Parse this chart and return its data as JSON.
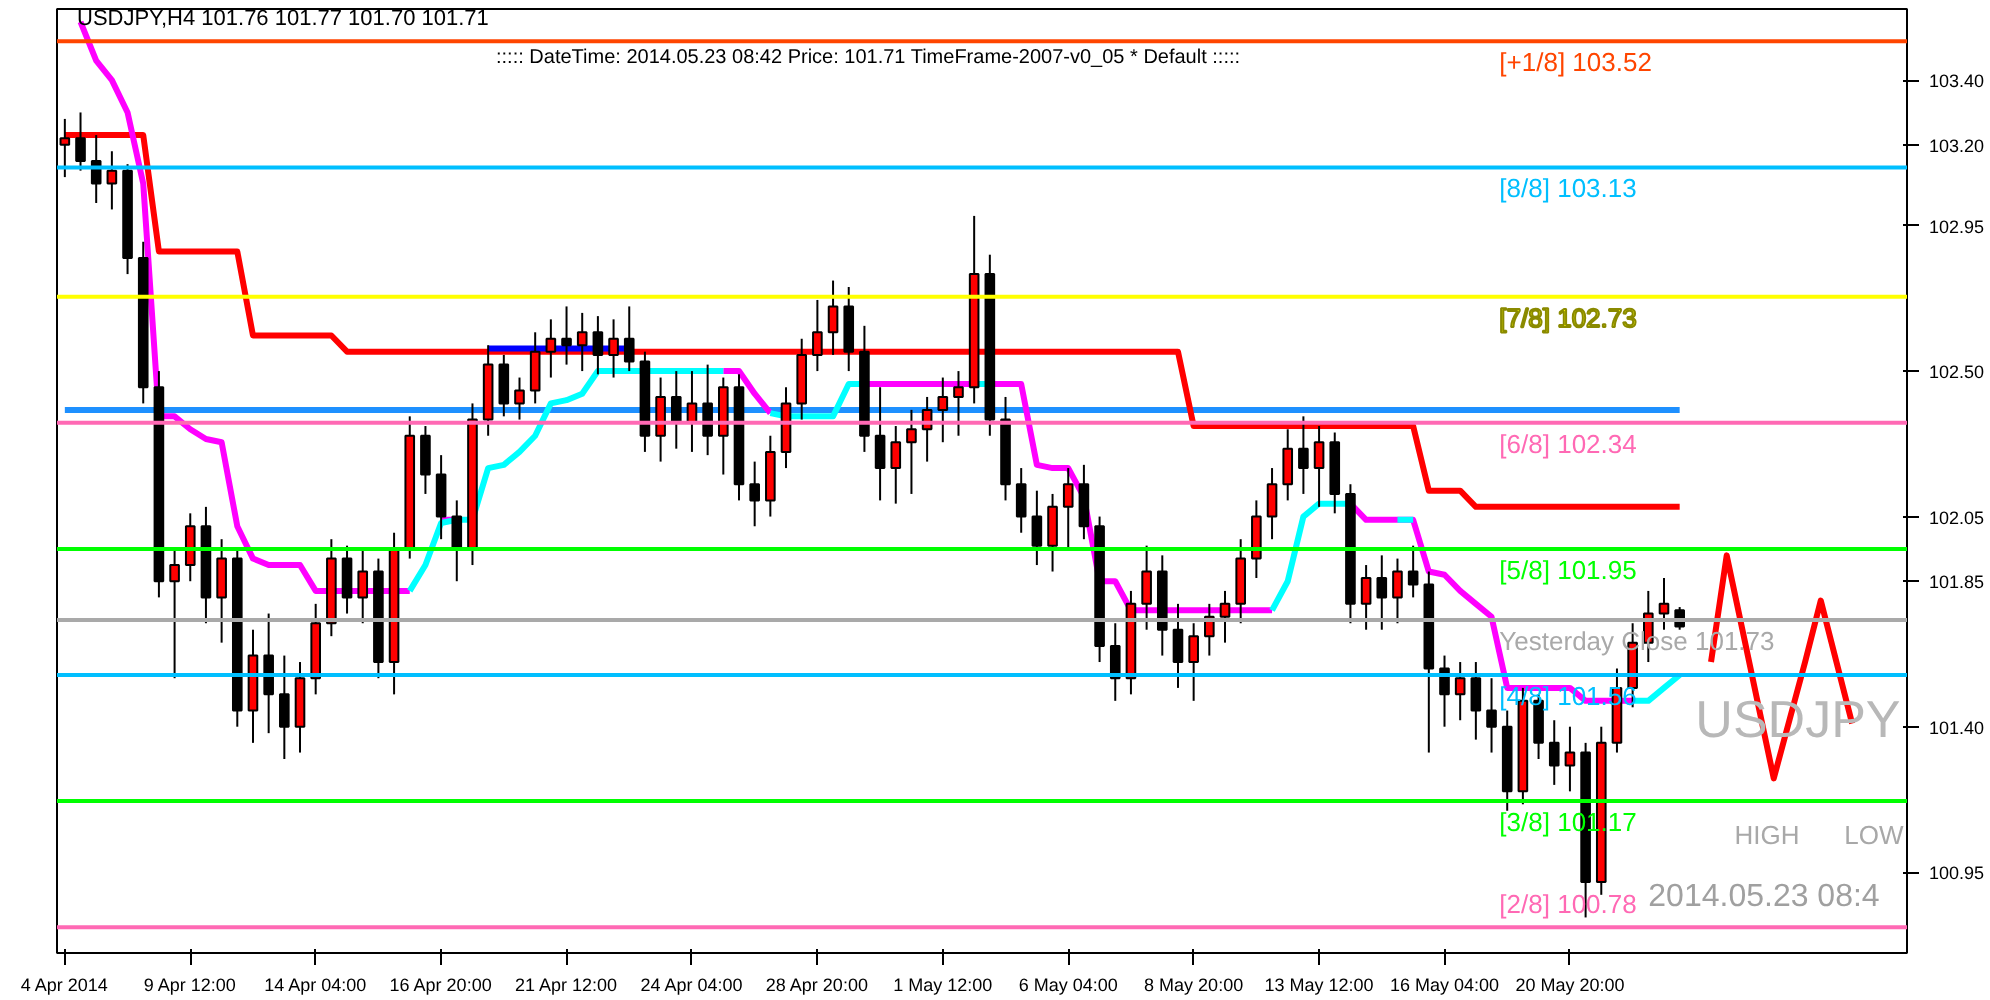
{
  "chart_data": {
    "type": "candlestick",
    "title": "USDJPY,H4  101.76 101.77 101.70 101.71",
    "subtitle": "::::: DateTime: 2014.05.23 08:42   Price: 101.71   TimeFrame-2007-v0_05   *   Default  :::::",
    "categories": [
      "4 Apr 2014",
      null,
      null,
      null,
      null,
      null,
      null,
      null,
      "9 Apr 12:00",
      null,
      null,
      null,
      null,
      null,
      null,
      null,
      "14 Apr 04:00",
      null,
      null,
      null,
      null,
      null,
      null,
      null,
      "16 Apr 20:00",
      null,
      null,
      null,
      null,
      null,
      null,
      null,
      "21 Apr 12:00",
      null,
      null,
      null,
      null,
      null,
      null,
      null,
      "24 Apr 04:00",
      null,
      null,
      null,
      null,
      null,
      null,
      null,
      "28 Apr 20:00",
      null,
      null,
      null,
      null,
      null,
      null,
      null,
      "1 May 12:00",
      null,
      null,
      null,
      null,
      null,
      null,
      null,
      "6 May 04:00",
      null,
      null,
      null,
      null,
      null,
      null,
      null,
      "8 May 20:00",
      null,
      null,
      null,
      null,
      null,
      null,
      null,
      "13 May 12:00",
      null,
      null,
      null,
      null,
      null,
      null,
      null,
      "16 May 04:00",
      null,
      null,
      null,
      null,
      null,
      null,
      null,
      "20 May 20:00",
      null,
      null,
      null,
      null,
      null,
      null,
      null,
      null,
      null,
      null,
      null,
      null,
      null,
      null,
      null,
      null,
      null,
      null,
      null,
      null,
      null
    ],
    "ohlc": [
      [
        103.2,
        103.28,
        103.1,
        103.22
      ],
      [
        103.22,
        103.3,
        103.12,
        103.15
      ],
      [
        103.15,
        103.23,
        103.02,
        103.08
      ],
      [
        103.08,
        103.18,
        103.0,
        103.12
      ],
      [
        103.12,
        103.14,
        102.8,
        102.85
      ],
      [
        102.85,
        102.9,
        102.4,
        102.45
      ],
      [
        102.45,
        102.5,
        101.8,
        101.85
      ],
      [
        101.85,
        101.95,
        101.55,
        101.9
      ],
      [
        101.9,
        102.06,
        101.85,
        102.02
      ],
      [
        102.02,
        102.08,
        101.72,
        101.8
      ],
      [
        101.8,
        101.98,
        101.66,
        101.92
      ],
      [
        101.92,
        101.95,
        101.4,
        101.45
      ],
      [
        101.45,
        101.7,
        101.35,
        101.62
      ],
      [
        101.62,
        101.75,
        101.38,
        101.5
      ],
      [
        101.5,
        101.62,
        101.3,
        101.4
      ],
      [
        101.4,
        101.6,
        101.32,
        101.55
      ],
      [
        101.55,
        101.78,
        101.5,
        101.72
      ],
      [
        101.72,
        101.98,
        101.68,
        101.92
      ],
      [
        101.92,
        101.96,
        101.75,
        101.8
      ],
      [
        101.8,
        101.95,
        101.72,
        101.88
      ],
      [
        101.88,
        101.92,
        101.55,
        101.6
      ],
      [
        101.6,
        102.0,
        101.5,
        101.95
      ],
      [
        101.95,
        102.36,
        101.92,
        102.3
      ],
      [
        102.3,
        102.33,
        102.12,
        102.18
      ],
      [
        102.18,
        102.24,
        101.98,
        102.05
      ],
      [
        102.05,
        102.1,
        101.85,
        101.95
      ],
      [
        101.95,
        102.4,
        101.9,
        102.35
      ],
      [
        102.35,
        102.58,
        102.3,
        102.52
      ],
      [
        102.52,
        102.55,
        102.36,
        102.4
      ],
      [
        102.4,
        102.48,
        102.35,
        102.44
      ],
      [
        102.44,
        102.62,
        102.4,
        102.56
      ],
      [
        102.56,
        102.66,
        102.48,
        102.6
      ],
      [
        102.6,
        102.7,
        102.52,
        102.58
      ],
      [
        102.58,
        102.68,
        102.5,
        102.62
      ],
      [
        102.62,
        102.67,
        102.49,
        102.55
      ],
      [
        102.55,
        102.66,
        102.48,
        102.6
      ],
      [
        102.6,
        102.7,
        102.5,
        102.53
      ],
      [
        102.53,
        102.56,
        102.25,
        102.3
      ],
      [
        102.3,
        102.48,
        102.22,
        102.42
      ],
      [
        102.42,
        102.5,
        102.26,
        102.34
      ],
      [
        102.34,
        102.5,
        102.25,
        102.4
      ],
      [
        102.4,
        102.52,
        102.24,
        102.3
      ],
      [
        102.3,
        102.48,
        102.18,
        102.45
      ],
      [
        102.45,
        102.49,
        102.1,
        102.15
      ],
      [
        102.15,
        102.22,
        102.02,
        102.1
      ],
      [
        102.1,
        102.3,
        102.05,
        102.25
      ],
      [
        102.25,
        102.45,
        102.2,
        102.4
      ],
      [
        102.4,
        102.6,
        102.35,
        102.55
      ],
      [
        102.55,
        102.72,
        102.5,
        102.62
      ],
      [
        102.62,
        102.78,
        102.55,
        102.7
      ],
      [
        102.7,
        102.76,
        102.5,
        102.56
      ],
      [
        102.56,
        102.64,
        102.25,
        102.3
      ],
      [
        102.3,
        102.45,
        102.1,
        102.2
      ],
      [
        102.2,
        102.33,
        102.09,
        102.28
      ],
      [
        102.28,
        102.38,
        102.12,
        102.32
      ],
      [
        102.32,
        102.42,
        102.22,
        102.38
      ],
      [
        102.38,
        102.48,
        102.28,
        102.42
      ],
      [
        102.42,
        102.5,
        102.3,
        102.45
      ],
      [
        102.45,
        102.98,
        102.4,
        102.8
      ],
      [
        102.8,
        102.86,
        102.3,
        102.35
      ],
      [
        102.35,
        102.42,
        102.1,
        102.15
      ],
      [
        102.15,
        102.2,
        102.0,
        102.05
      ],
      [
        102.05,
        102.13,
        101.9,
        101.96
      ],
      [
        101.96,
        102.12,
        101.88,
        102.08
      ],
      [
        102.08,
        102.2,
        101.95,
        102.15
      ],
      [
        102.15,
        102.21,
        101.98,
        102.02
      ],
      [
        102.02,
        102.05,
        101.6,
        101.65
      ],
      [
        101.65,
        101.72,
        101.48,
        101.55
      ],
      [
        101.55,
        101.82,
        101.5,
        101.78
      ],
      [
        101.78,
        101.96,
        101.7,
        101.88
      ],
      [
        101.88,
        101.93,
        101.62,
        101.7
      ],
      [
        101.7,
        101.78,
        101.52,
        101.6
      ],
      [
        101.6,
        101.72,
        101.48,
        101.68
      ],
      [
        101.68,
        101.78,
        101.62,
        101.74
      ],
      [
        101.74,
        101.82,
        101.66,
        101.78
      ],
      [
        101.78,
        101.98,
        101.72,
        101.92
      ],
      [
        101.92,
        102.1,
        101.86,
        102.05
      ],
      [
        102.05,
        102.2,
        101.98,
        102.15
      ],
      [
        102.15,
        102.32,
        102.1,
        102.26
      ],
      [
        102.26,
        102.36,
        102.12,
        102.2
      ],
      [
        102.2,
        102.33,
        102.08,
        102.28
      ],
      [
        102.28,
        102.31,
        102.06,
        102.12
      ],
      [
        102.12,
        102.15,
        101.72,
        101.78
      ],
      [
        101.78,
        101.9,
        101.7,
        101.86
      ],
      [
        101.86,
        101.93,
        101.7,
        101.8
      ],
      [
        101.8,
        101.92,
        101.72,
        101.88
      ],
      [
        101.88,
        101.96,
        101.8,
        101.84
      ],
      [
        101.84,
        101.88,
        101.32,
        101.58
      ],
      [
        101.58,
        101.62,
        101.4,
        101.5
      ],
      [
        101.5,
        101.6,
        101.42,
        101.55
      ],
      [
        101.55,
        101.6,
        101.36,
        101.45
      ],
      [
        101.45,
        101.55,
        101.32,
        101.4
      ],
      [
        101.4,
        101.45,
        101.14,
        101.2
      ],
      [
        101.2,
        101.52,
        101.16,
        101.48
      ],
      [
        101.48,
        101.5,
        101.3,
        101.35
      ],
      [
        101.35,
        101.42,
        101.22,
        101.28
      ],
      [
        101.28,
        101.4,
        101.2,
        101.32
      ],
      [
        101.32,
        101.35,
        100.81,
        100.92
      ],
      [
        100.92,
        101.4,
        100.88,
        101.35
      ],
      [
        101.35,
        101.58,
        101.32,
        101.52
      ],
      [
        101.52,
        101.72,
        101.46,
        101.66
      ],
      [
        101.66,
        101.82,
        101.6,
        101.75
      ],
      [
        101.75,
        101.86,
        101.7,
        101.78
      ],
      [
        101.76,
        101.77,
        101.7,
        101.71
      ],
      null,
      null,
      null,
      null,
      null,
      null,
      null,
      null,
      null,
      null,
      null,
      null,
      null,
      null
    ],
    "colors": [
      "#ff0000",
      "#000000",
      "#000000",
      "#ff0000",
      "#000000",
      "#000000",
      "#000000",
      "#ff0000",
      "#ff0000",
      "#000000",
      "#ff0000",
      "#000000",
      "#ff0000",
      "#000000",
      "#000000",
      "#ff0000",
      "#ff0000",
      "#ff0000",
      "#000000",
      "#ff0000",
      "#000000",
      "#ff0000",
      "#ff0000",
      "#000000",
      "#000000",
      "#000000",
      "#ff0000",
      "#ff0000",
      "#000000",
      "#ff0000",
      "#ff0000",
      "#ff0000",
      "#000000",
      "#ff0000",
      "#000000",
      "#ff0000",
      "#000000",
      "#000000",
      "#ff0000",
      "#000000",
      "#ff0000",
      "#000000",
      "#ff0000",
      "#000000",
      "#000000",
      "#ff0000",
      "#ff0000",
      "#ff0000",
      "#ff0000",
      "#ff0000",
      "#000000",
      "#000000",
      "#000000",
      "#ff0000",
      "#ff0000",
      "#ff0000",
      "#ff0000",
      "#ff0000",
      "#ff0000",
      "#000000",
      "#000000",
      "#000000",
      "#000000",
      "#ff0000",
      "#ff0000",
      "#000000",
      "#000000",
      "#000000",
      "#ff0000",
      "#ff0000",
      "#000000",
      "#000000",
      "#ff0000",
      "#ff0000",
      "#ff0000",
      "#ff0000",
      "#ff0000",
      "#ff0000",
      "#ff0000",
      "#000000",
      "#ff0000",
      "#000000",
      "#000000",
      "#ff0000",
      "#000000",
      "#ff0000",
      "#000000",
      "#000000",
      "#000000",
      "#ff0000",
      "#000000",
      "#000000",
      "#000000",
      "#ff0000",
      "#000000",
      "#000000",
      "#ff0000",
      "#000000",
      "#ff0000",
      "#ff0000",
      "#ff0000",
      "#ff0000",
      "#ff0000",
      "#000000",
      null,
      null,
      null,
      null,
      null,
      null,
      null,
      null,
      null,
      null,
      null,
      null,
      null,
      null
    ],
    "series": [
      {
        "type": "line",
        "color": "#1e90ff",
        "values": [
          102.38,
          102.38,
          102.38,
          102.38,
          102.38,
          102.38,
          102.38,
          102.38,
          102.38,
          102.38,
          102.38,
          102.38,
          102.38,
          102.38,
          102.38,
          102.38,
          102.38,
          102.38,
          102.38,
          102.38,
          102.38,
          102.38,
          102.38,
          102.38,
          102.38,
          102.38,
          102.38,
          102.38,
          102.38,
          102.38,
          102.38,
          102.38,
          102.38,
          102.38,
          102.38,
          102.38,
          102.38,
          102.38,
          102.38,
          102.38,
          102.38,
          102.38,
          102.38,
          102.38,
          102.38,
          102.38,
          102.38,
          102.38,
          102.38,
          102.38,
          102.38,
          102.38,
          102.38,
          102.38,
          102.38,
          102.38,
          102.38,
          102.38,
          102.38,
          102.38,
          102.38,
          102.38,
          102.38,
          102.38,
          102.38,
          102.38,
          102.38,
          102.38,
          102.38,
          102.38,
          102.38,
          102.38,
          102.38,
          102.38,
          102.38,
          102.38,
          102.38,
          102.38,
          102.38,
          102.38,
          102.38,
          102.38,
          102.38,
          102.38,
          102.38,
          102.38,
          102.38,
          102.38,
          102.38,
          102.38,
          102.38,
          102.38,
          102.38,
          102.38,
          102.38,
          102.38,
          102.38,
          102.38,
          102.38,
          102.38,
          102.38,
          102.38,
          102.38,
          102.38,
          null,
          null,
          null,
          null,
          null,
          null,
          null,
          null,
          null,
          null,
          null,
          null,
          null,
          null
        ]
      },
      {
        "type": "line",
        "color": "#ff0000",
        "values": [
          103.23,
          103.23,
          103.23,
          103.23,
          103.23,
          103.23,
          102.87,
          102.87,
          102.87,
          102.87,
          102.87,
          102.87,
          102.61,
          102.61,
          102.61,
          102.61,
          102.61,
          102.61,
          102.56,
          102.56,
          102.56,
          102.56,
          102.56,
          102.56,
          102.56,
          102.56,
          102.56,
          102.56,
          102.56,
          102.56,
          102.56,
          102.56,
          102.56,
          102.56,
          102.56,
          102.56,
          102.56,
          102.56,
          102.56,
          102.56,
          102.56,
          102.56,
          102.56,
          102.56,
          102.56,
          102.56,
          102.56,
          102.56,
          102.56,
          102.56,
          102.56,
          102.56,
          102.56,
          102.56,
          102.56,
          102.56,
          102.56,
          102.56,
          102.56,
          102.56,
          102.56,
          102.56,
          102.56,
          102.56,
          102.56,
          102.56,
          102.56,
          102.56,
          102.56,
          102.56,
          102.56,
          102.56,
          102.33,
          102.33,
          102.33,
          102.33,
          102.33,
          102.33,
          102.33,
          102.33,
          102.33,
          102.33,
          102.33,
          102.33,
          102.33,
          102.33,
          102.33,
          102.13,
          102.13,
          102.13,
          102.08,
          102.08,
          102.08,
          102.08,
          102.08,
          102.08,
          102.08,
          102.08,
          102.08,
          102.08,
          102.08,
          102.08,
          102.08,
          102.08,
          null,
          null,
          null,
          null,
          null,
          null,
          null,
          null,
          null,
          null,
          null,
          null,
          null,
          null
        ]
      },
      {
        "type": "line",
        "color": "#0000ff",
        "values": [
          null,
          null,
          null,
          null,
          null,
          null,
          null,
          null,
          null,
          null,
          null,
          null,
          null,
          null,
          null,
          null,
          null,
          null,
          null,
          null,
          null,
          null,
          null,
          null,
          null,
          null,
          null,
          102.57,
          102.57,
          102.57,
          102.57,
          102.57,
          102.57,
          102.57,
          102.57,
          102.57,
          102.57,
          null,
          null,
          null,
          null,
          null,
          null,
          null,
          null,
          null,
          null,
          null,
          null,
          null,
          null,
          null,
          null,
          null,
          null,
          null,
          null,
          null,
          null,
          null,
          null,
          null,
          null,
          null,
          null,
          null,
          null,
          null,
          null,
          null,
          null,
          null,
          null,
          null,
          null,
          null,
          null,
          null,
          null,
          null,
          null,
          null,
          null,
          null,
          null,
          null,
          null,
          null,
          null,
          null,
          null,
          null,
          null,
          null,
          null,
          null,
          null,
          null,
          null,
          null,
          null,
          null,
          null,
          null,
          null,
          null,
          null,
          null,
          null,
          null,
          null,
          null,
          null,
          null,
          null,
          null,
          null,
          null
        ]
      },
      {
        "type": "line",
        "color": "#ff00ff",
        "values": [
          null,
          103.58,
          103.46,
          103.4,
          103.3,
          103.08,
          102.36,
          102.36,
          102.32,
          102.29,
          102.28,
          102.02,
          101.92,
          101.9,
          101.9,
          101.9,
          101.82,
          101.82,
          101.82,
          101.82,
          101.82,
          101.82,
          101.82,
          null,
          102.04,
          102.04,
          null,
          null,
          null,
          null,
          null,
          null,
          null,
          null,
          null,
          null,
          null,
          null,
          null,
          null,
          null,
          null,
          102.5,
          102.5,
          102.43,
          102.37,
          null,
          null,
          null,
          null,
          null,
          102.46,
          102.46,
          102.46,
          102.46,
          102.46,
          102.46,
          102.46,
          102.46,
          102.46,
          102.46,
          102.46,
          102.21,
          102.2,
          102.2,
          102.11,
          101.85,
          101.85,
          101.76,
          101.76,
          101.76,
          101.76,
          101.76,
          101.76,
          101.76,
          101.76,
          101.76,
          101.76,
          null,
          null,
          null,
          null,
          102.09,
          102.04,
          102.04,
          102.04,
          102.04,
          101.88,
          101.87,
          101.82,
          101.78,
          101.74,
          101.52,
          101.52,
          101.52,
          101.52,
          101.52,
          101.48,
          101.48,
          101.48,
          101.48,
          null,
          null,
          null,
          null,
          null,
          null,
          null,
          null,
          null,
          null,
          null,
          null,
          null,
          null,
          null,
          null,
          null
        ]
      },
      {
        "type": "line",
        "color": "#00ffff",
        "values": [
          null,
          null,
          null,
          null,
          null,
          null,
          null,
          null,
          null,
          null,
          null,
          null,
          null,
          null,
          null,
          null,
          null,
          null,
          null,
          null,
          null,
          null,
          101.82,
          101.9,
          102.03,
          102.04,
          102.04,
          102.2,
          102.21,
          102.25,
          102.3,
          102.4,
          102.41,
          102.43,
          102.5,
          102.5,
          102.5,
          102.5,
          102.5,
          102.5,
          102.5,
          102.5,
          102.5,
          null,
          null,
          102.37,
          102.36,
          102.36,
          102.36,
          102.36,
          102.46,
          102.46,
          null,
          null,
          null,
          null,
          null,
          null,
          102.46,
          102.46,
          null,
          null,
          null,
          null,
          null,
          null,
          null,
          null,
          null,
          null,
          null,
          null,
          null,
          null,
          null,
          null,
          null,
          101.76,
          101.85,
          102.05,
          102.09,
          102.09,
          102.09,
          null,
          null,
          102.04,
          102.04,
          null,
          null,
          null,
          null,
          null,
          null,
          null,
          null,
          null,
          null,
          null,
          null,
          null,
          101.48,
          101.48,
          101.52,
          101.56,
          null,
          null,
          null,
          null,
          null,
          null,
          null,
          null,
          null,
          null,
          null,
          null,
          null,
          null
        ]
      },
      {
        "type": "line",
        "color": "#ff0000",
        "values": [
          null,
          null,
          null,
          null,
          null,
          null,
          null,
          null,
          null,
          null,
          null,
          null,
          null,
          null,
          null,
          null,
          null,
          null,
          null,
          null,
          null,
          null,
          null,
          null,
          null,
          null,
          null,
          null,
          null,
          null,
          null,
          null,
          null,
          null,
          null,
          null,
          null,
          null,
          null,
          null,
          null,
          null,
          null,
          null,
          null,
          null,
          null,
          null,
          null,
          null,
          null,
          null,
          null,
          null,
          null,
          null,
          null,
          null,
          null,
          null,
          null,
          null,
          null,
          null,
          null,
          null,
          null,
          null,
          null,
          null,
          null,
          null,
          null,
          null,
          null,
          null,
          null,
          null,
          null,
          null,
          null,
          null,
          null,
          null,
          null,
          null,
          null,
          null,
          null,
          null,
          null,
          null,
          null,
          null,
          null,
          null,
          null,
          null,
          null,
          null,
          null,
          null,
          null,
          null,
          null,
          101.6,
          101.93,
          101.7,
          101.47,
          101.24,
          101.42,
          101.6,
          101.79,
          101.6,
          101.41,
          null,
          null,
          null
        ]
      }
    ],
    "ref_lines": [
      {
        "axis": "y",
        "value": 103.52,
        "label": "[+1/8]     103.52",
        "color": "#ff4500"
      },
      {
        "axis": "y",
        "value": 103.13,
        "label": "[8/8]     103.13",
        "color": "#00bfff"
      },
      {
        "axis": "y",
        "value": 102.73,
        "label": "[7/8]     102.73",
        "color": "#ffff00"
      },
      {
        "axis": "y",
        "value": 102.34,
        "label": "[6/8]     102.34",
        "color": "#ff69b4"
      },
      {
        "axis": "y",
        "value": 101.95,
        "label": "[5/8]     101.95",
        "color": "#00ff00"
      },
      {
        "axis": "y",
        "value": 101.73,
        "label": "Yesterday Close  101.73",
        "color": "#a9a9a9"
      },
      {
        "axis": "y",
        "value": 101.56,
        "label": "[4/8]     101.56",
        "color": "#00bfff"
      },
      {
        "axis": "y",
        "value": 101.17,
        "label": "[3/8]     101.17",
        "color": "#00ff00"
      },
      {
        "axis": "y",
        "value": 100.78,
        "label": "[2/8]     100.78",
        "color": "#ff69b4"
      }
    ],
    "annotations": [
      "USDJPY",
      "HIGH",
      "LOW",
      "2014.05.23 08:4"
    ],
    "ylim": [
      100.7,
      103.62
    ],
    "yticks": [
      {
        "value": 103.4,
        "label": "103.40"
      },
      {
        "value": 103.2,
        "label": "103.20"
      },
      {
        "value": 102.95,
        "label": "102.95"
      },
      {
        "value": 102.5,
        "label": "102.50"
      },
      {
        "value": 102.05,
        "label": "102.05"
      },
      {
        "value": 101.85,
        "label": "101.85"
      },
      {
        "value": 101.4,
        "label": "101.40"
      },
      {
        "value": 100.95,
        "label": "100.95"
      }
    ],
    "grid": false
  }
}
